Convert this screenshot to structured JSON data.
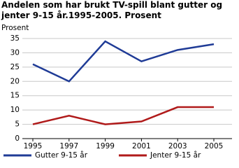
{
  "chart_data": {
    "type": "line",
    "title": "Andelen som har brukt TV-spill blant gutter og jenter 9-15 år.1995-2005. Prosent",
    "y_label": "Prosent",
    "categories": [
      "1995",
      "1997",
      "1999",
      "2001",
      "2003",
      "2005"
    ],
    "series": [
      {
        "name": "Gutter 9-15 år",
        "color": "#1f3b96",
        "values": [
          26,
          20,
          34,
          27,
          31,
          33
        ]
      },
      {
        "name": "Jenter 9-15 år",
        "color": "#b01a1a",
        "values": [
          5,
          8,
          5,
          6,
          11,
          11
        ]
      }
    ],
    "ylim": [
      0,
      35
    ],
    "yticks": [
      0,
      5,
      10,
      15,
      20,
      25,
      30,
      35
    ],
    "grid": true
  }
}
